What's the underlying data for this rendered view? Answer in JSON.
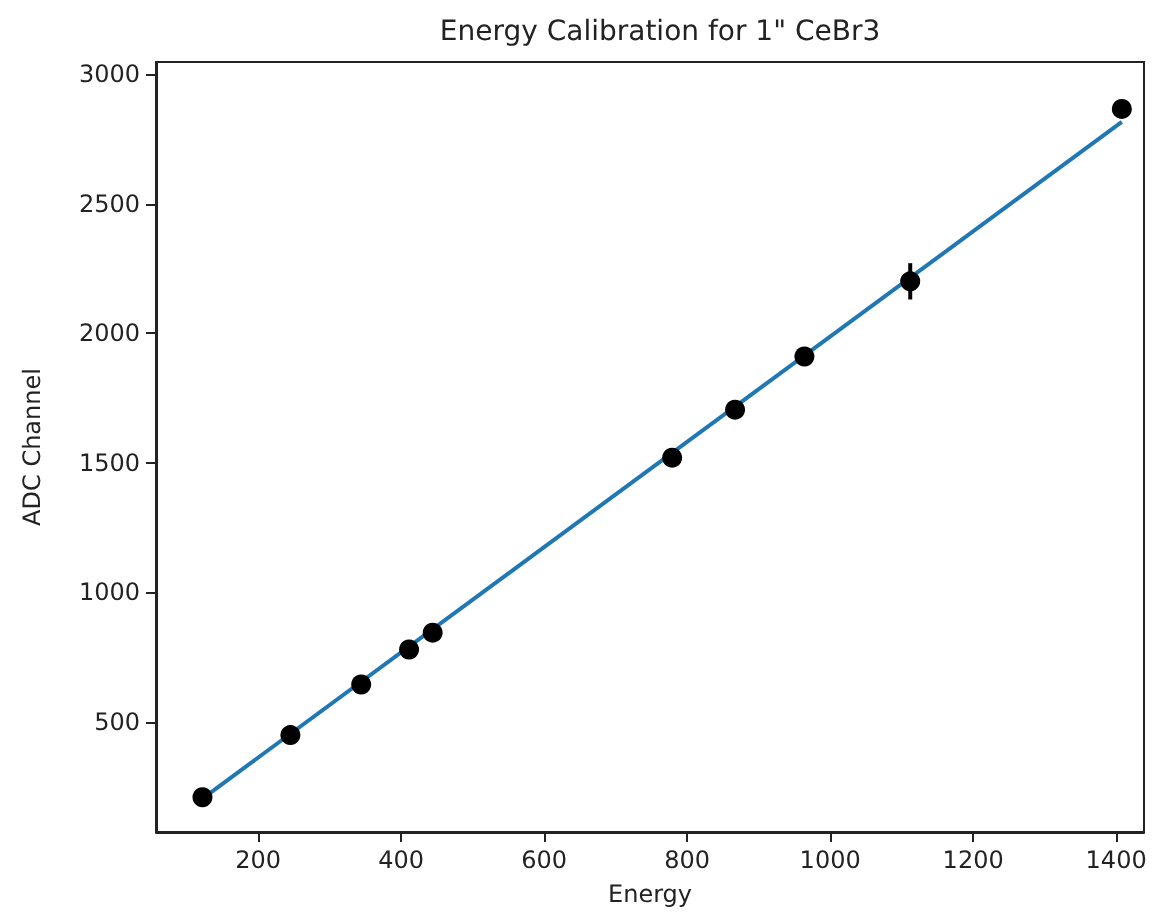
{
  "chart_data": {
    "type": "scatter",
    "title": "Energy Calibration for 1\" CeBr3",
    "xlabel": "Energy",
    "ylabel": "ADC Channel",
    "xlim": [
      57,
      1439
    ],
    "xticks": [
      200,
      400,
      600,
      800,
      1000,
      1200,
      1400
    ],
    "ylim": [
      76,
      3046
    ],
    "yticks": [
      500,
      1000,
      1500,
      2000,
      2500,
      3000
    ],
    "grid": false,
    "marker": "circle",
    "series": [
      {
        "color": "#000000",
        "x": [
          122,
          245,
          344,
          411,
          444,
          779,
          867,
          964,
          1112,
          1408
        ],
        "values": [
          210,
          450,
          645,
          780,
          845,
          1520,
          1705,
          1910,
          2200,
          2865
        ],
        "errors": [
          null,
          null,
          null,
          null,
          null,
          null,
          null,
          null,
          70,
          null
        ]
      },
      {
        "type": "line",
        "color": "#1f77b4",
        "marker": "none",
        "x": [
          122,
          1408
        ],
        "values": [
          205,
          2815
        ]
      }
    ]
  }
}
